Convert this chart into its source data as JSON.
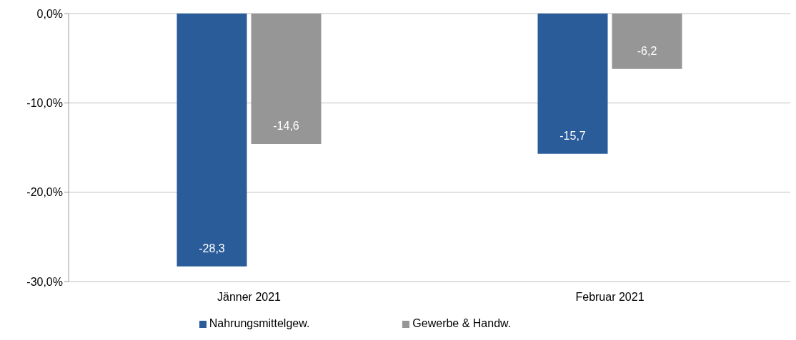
{
  "chart_data": {
    "type": "bar",
    "categories": [
      "Jänner 2021",
      "Februar 2021"
    ],
    "series": [
      {
        "name": "Nahrungsmittelgew.",
        "color": "#2a5c9a",
        "values": [
          -28.3,
          -15.7
        ],
        "value_labels": [
          "-28,3",
          "-15,7"
        ]
      },
      {
        "name": "Gewerbe & Handw.",
        "color": "#969696",
        "values": [
          -14.6,
          -6.2
        ],
        "value_labels": [
          "-14,6",
          "-6,2"
        ]
      }
    ],
    "ylim": [
      -30,
      0
    ],
    "yticks": [
      {
        "value": 0,
        "label": "0,0%"
      },
      {
        "value": -10,
        "label": "-10,0%"
      },
      {
        "value": -20,
        "label": "-20,0%"
      },
      {
        "value": -30,
        "label": "-30,0%"
      }
    ],
    "grid": "y",
    "legend": "bottom"
  }
}
